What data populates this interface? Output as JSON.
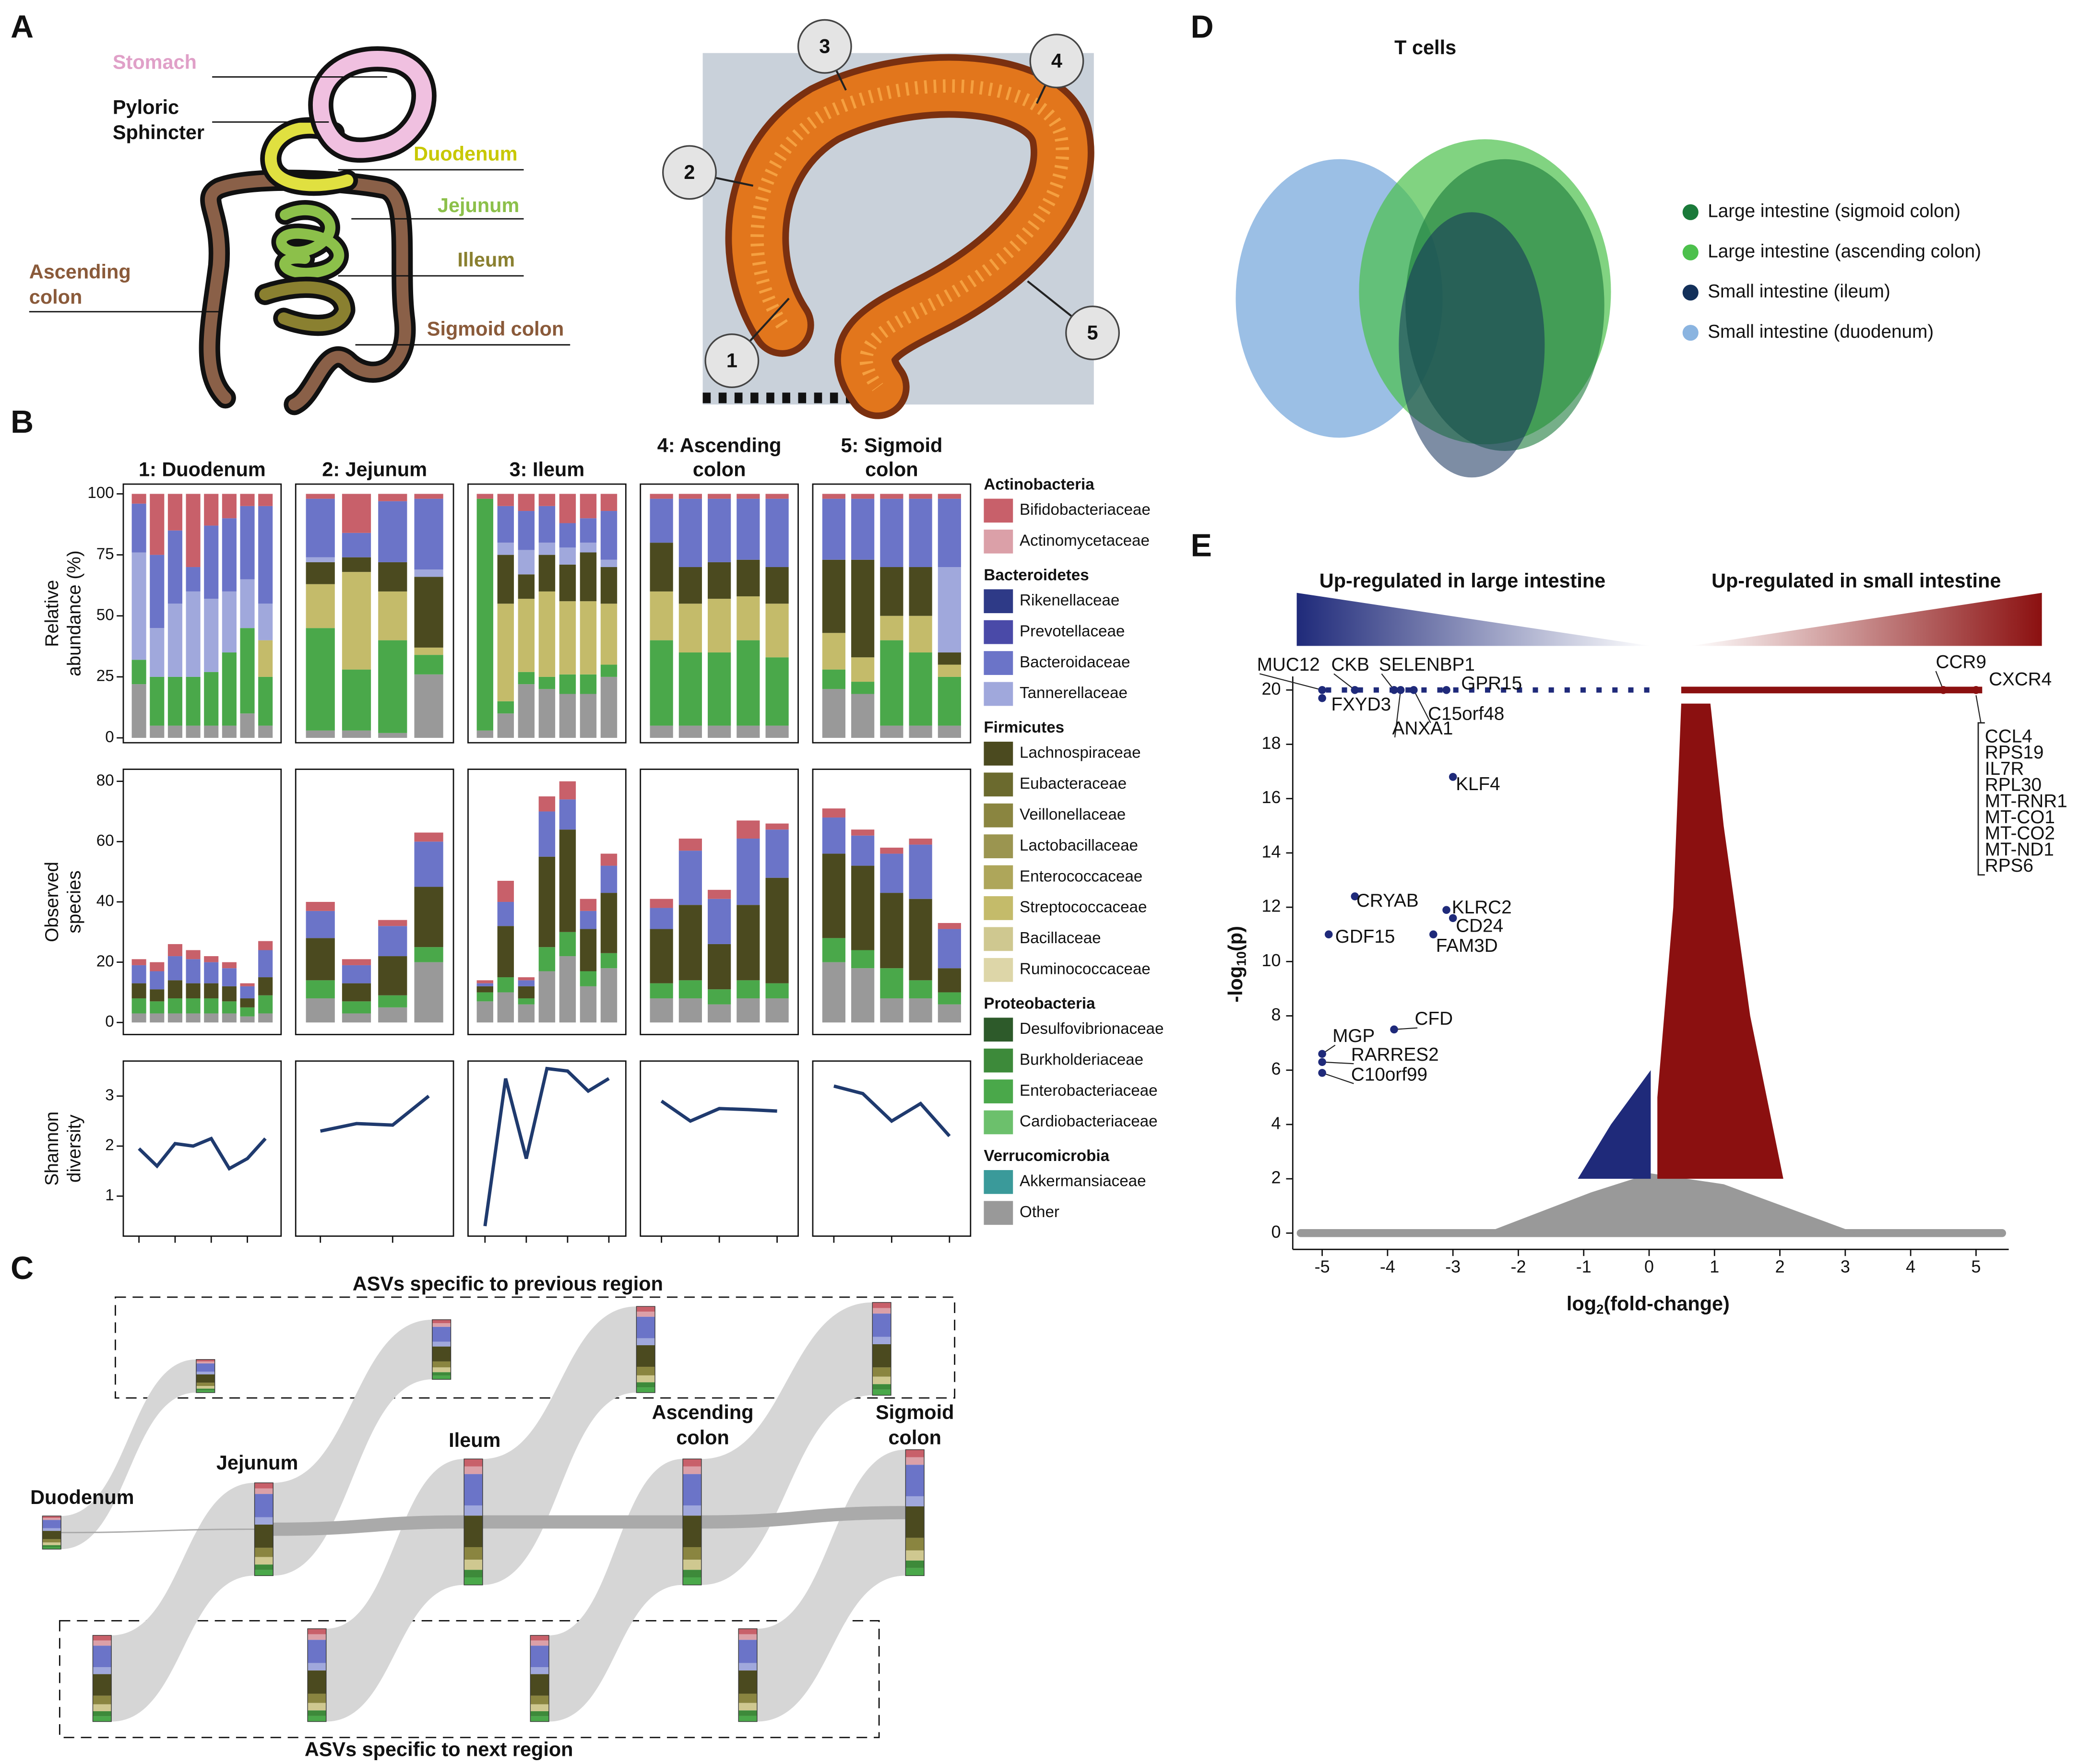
{
  "panel_labels": [
    "A",
    "B",
    "C",
    "D",
    "E"
  ],
  "anatomy": {
    "stomach": "Stomach",
    "pyloric": [
      "Pyloric",
      "Sphincter"
    ],
    "duodenum": "Duodenum",
    "jejunum": "Jejunum",
    "ileum": "Illeum",
    "ascending": [
      "Ascending",
      "colon"
    ],
    "sigmoid": "Sigmoid colon"
  },
  "photo_markers": [
    "1",
    "2",
    "3",
    "4",
    "5"
  ],
  "flow": {
    "top_label": "ASVs specific to previous region",
    "bottom_label": "ASVs specific to next region",
    "regions": [
      [
        "Duodenum"
      ],
      [
        "Jejunum"
      ],
      [
        "Ileum"
      ],
      [
        "Ascending",
        "colon"
      ],
      [
        "Sigmoid",
        "colon"
      ]
    ]
  },
  "legend_b": [
    {
      "group": "Actinobacteria",
      "items": [
        {
          "name": "Bifidobacteriaceae",
          "color": "#c8606a"
        },
        {
          "name": "Actinomycetaceae",
          "color": "#dba0a8"
        }
      ]
    },
    {
      "group": "Bacteroidetes",
      "items": [
        {
          "name": "Rikenellaceae",
          "color": "#2e3a87"
        },
        {
          "name": "Prevotellaceae",
          "color": "#4a4aa8"
        },
        {
          "name": "Bacteroidaceae",
          "color": "#6b74c8"
        },
        {
          "name": "Tannerellaceae",
          "color": "#a0a8dc"
        }
      ]
    },
    {
      "group": "Firmicutes",
      "items": [
        {
          "name": "Lachnospiraceae",
          "color": "#4b4a1f"
        },
        {
          "name": "Eubacteraceae",
          "color": "#6b6a2e"
        },
        {
          "name": "Veillonellaceae",
          "color": "#8a8540"
        },
        {
          "name": "Lactobacillaceae",
          "color": "#9b9550"
        },
        {
          "name": "Enterococcaceae",
          "color": "#aea65a"
        },
        {
          "name": "Streptococcaceae",
          "color": "#c4bb6a"
        },
        {
          "name": "Bacillaceae",
          "color": "#cfc890"
        },
        {
          "name": "Ruminococcaceae",
          "color": "#ddd6a8"
        }
      ]
    },
    {
      "group": "Proteobacteria",
      "items": [
        {
          "name": "Desulfovibrionaceae",
          "color": "#2d5a2a"
        },
        {
          "name": "Burkholderiaceae",
          "color": "#3d8a3a"
        },
        {
          "name": "Enterobacteriaceae",
          "color": "#4aa84a"
        },
        {
          "name": "Cardiobacteriaceae",
          "color": "#6cc06c"
        }
      ]
    },
    {
      "group": "Verrucomicrobia",
      "items": [
        {
          "name": "Akkermansiaceae",
          "color": "#3a9a9a"
        },
        {
          "name": "Other",
          "color": "#999999"
        }
      ]
    }
  ],
  "chart_data": [
    {
      "type": "stacked-bar",
      "facets": [
        [
          "1: Duodenum"
        ],
        [
          "2: Jejunum"
        ],
        [
          "3: Ileum"
        ],
        [
          "4: Ascending",
          "colon"
        ],
        [
          "5: Sigmoid",
          "colon"
        ]
      ],
      "ylabel": [
        "Relative",
        "abundance (%)"
      ],
      "ylim": [
        -2,
        104
      ],
      "yticks": [
        0,
        25,
        50,
        75,
        100
      ],
      "series": [
        {
          "name": "Other",
          "color": "#999999",
          "values": [
            [
              22,
              5,
              5,
              5,
              5,
              5,
              10,
              5
            ],
            [
              3,
              3,
              2,
              26
            ],
            [
              3,
              10,
              22,
              20,
              18,
              18,
              25
            ],
            [
              5,
              5,
              5,
              5,
              5
            ],
            [
              20,
              18,
              5,
              5,
              5
            ]
          ]
        },
        {
          "name": "Enterobacteriaceae",
          "color": "#4aa84a",
          "values": [
            [
              10,
              20,
              20,
              20,
              22,
              30,
              35,
              20
            ],
            [
              42,
              25,
              38,
              8
            ],
            [
              95,
              5,
              5,
              5,
              8,
              8,
              5
            ],
            [
              35,
              30,
              30,
              35,
              28
            ],
            [
              8,
              5,
              35,
              30,
              20
            ]
          ]
        },
        {
          "name": "Streptococcaceae",
          "color": "#c4bb6a",
          "values": [
            [
              0,
              0,
              0,
              0,
              0,
              0,
              0,
              15
            ],
            [
              18,
              40,
              20,
              3
            ],
            [
              0,
              40,
              30,
              35,
              30,
              30,
              25
            ],
            [
              20,
              20,
              22,
              18,
              22
            ],
            [
              15,
              10,
              10,
              15,
              5
            ]
          ]
        },
        {
          "name": "Lachnospiraceae",
          "color": "#4b4a1f",
          "values": [
            [
              0,
              0,
              0,
              0,
              0,
              0,
              0,
              0
            ],
            [
              9,
              6,
              12,
              29
            ],
            [
              0,
              20,
              10,
              15,
              15,
              20,
              15
            ],
            [
              20,
              15,
              15,
              15,
              15
            ],
            [
              30,
              40,
              20,
              20,
              5
            ]
          ]
        },
        {
          "name": "Tannerellaceae",
          "color": "#a0a8dc",
          "values": [
            [
              44,
              20,
              30,
              35,
              30,
              25,
              20,
              15
            ],
            [
              2,
              0,
              0,
              3
            ],
            [
              0,
              5,
              10,
              5,
              7,
              4,
              3
            ],
            [
              0,
              0,
              0,
              0,
              0
            ],
            [
              0,
              0,
              0,
              0,
              35
            ]
          ]
        },
        {
          "name": "Bacteroidaceae",
          "color": "#6b74c8",
          "values": [
            [
              20,
              30,
              30,
              10,
              30,
              30,
              30,
              40
            ],
            [
              24,
              10,
              25,
              29
            ],
            [
              0,
              15,
              16,
              15,
              10,
              10,
              20
            ],
            [
              18,
              28,
              26,
              25,
              28
            ],
            [
              25,
              25,
              28,
              28,
              28
            ]
          ]
        },
        {
          "name": "Bifidobacteriaceae",
          "color": "#c8606a",
          "values": [
            [
              4,
              25,
              15,
              30,
              13,
              10,
              5,
              5
            ],
            [
              2,
              16,
              3,
              2
            ],
            [
              2,
              5,
              7,
              5,
              12,
              10,
              7
            ],
            [
              2,
              2,
              2,
              2,
              2
            ],
            [
              2,
              2,
              2,
              2,
              2
            ]
          ]
        }
      ]
    },
    {
      "type": "stacked-bar",
      "ylabel": [
        "Observed",
        "species"
      ],
      "ylim": [
        -4,
        84
      ],
      "yticks": [
        0,
        20,
        40,
        60,
        80
      ],
      "series": [
        {
          "name": "Other",
          "color": "#999999",
          "values": [
            [
              3,
              3,
              3,
              3,
              3,
              3,
              2,
              3
            ],
            [
              8,
              3,
              5,
              20
            ],
            [
              7,
              10,
              6,
              17,
              22,
              12,
              18
            ],
            [
              8,
              8,
              6,
              8,
              8
            ],
            [
              20,
              18,
              8,
              8,
              6
            ]
          ]
        },
        {
          "name": "Enterobacteriaceae",
          "color": "#4aa84a",
          "values": [
            [
              5,
              4,
              5,
              5,
              5,
              4,
              3,
              6
            ],
            [
              6,
              4,
              4,
              5
            ],
            [
              3,
              5,
              2,
              8,
              8,
              5,
              5
            ],
            [
              5,
              6,
              5,
              6,
              5
            ],
            [
              8,
              6,
              10,
              6,
              4
            ]
          ]
        },
        {
          "name": "Lachnospiraceae",
          "color": "#4b4a1f",
          "values": [
            [
              5,
              4,
              6,
              5,
              5,
              5,
              3,
              6
            ],
            [
              14,
              6,
              13,
              20
            ],
            [
              2,
              17,
              4,
              30,
              34,
              14,
              20
            ],
            [
              18,
              25,
              15,
              25,
              35
            ],
            [
              28,
              28,
              25,
              27,
              8
            ]
          ]
        },
        {
          "name": "Bacteroidaceae",
          "color": "#6b74c8",
          "values": [
            [
              6,
              6,
              8,
              8,
              7,
              6,
              4,
              9
            ],
            [
              9,
              6,
              10,
              15
            ],
            [
              1,
              8,
              2,
              15,
              10,
              6,
              9
            ],
            [
              7,
              18,
              15,
              22,
              16
            ],
            [
              12,
              10,
              13,
              18,
              13
            ]
          ]
        },
        {
          "name": "Bifidobacteriaceae",
          "color": "#c8606a",
          "values": [
            [
              2,
              3,
              4,
              3,
              2,
              2,
              1,
              3
            ],
            [
              3,
              2,
              2,
              3
            ],
            [
              1,
              7,
              1,
              5,
              6,
              4,
              4
            ],
            [
              3,
              4,
              3,
              6,
              2
            ],
            [
              3,
              2,
              2,
              2,
              2
            ]
          ]
        }
      ]
    },
    {
      "type": "line",
      "ylabel": [
        "Shannon",
        "diversity"
      ],
      "ylim": [
        0.2,
        3.7
      ],
      "yticks": [
        1,
        2,
        3
      ],
      "color": "#1f3a6e",
      "values": [
        [
          1.95,
          1.6,
          2.05,
          2.0,
          2.15,
          1.55,
          1.75,
          2.15
        ],
        [
          2.3,
          2.45,
          2.42,
          3.0
        ],
        [
          0.4,
          3.35,
          1.75,
          3.55,
          3.5,
          3.1,
          3.35
        ],
        [
          2.9,
          2.5,
          2.75,
          2.73,
          2.7
        ],
        [
          3.2,
          3.05,
          2.5,
          2.85,
          2.2
        ]
      ]
    },
    {
      "type": "scatter",
      "title": "T cells",
      "series": [
        {
          "name": "Large intestine (sigmoid colon)",
          "color": "#1a7a3a"
        },
        {
          "name": "Large intestine (ascending colon)",
          "color": "#4cc04c"
        },
        {
          "name": "Small intestine (ileum)",
          "color": "#13305a"
        },
        {
          "name": "Small intestine (duodenum)",
          "color": "#8ab4e0"
        }
      ]
    },
    {
      "type": "scatter",
      "title_left": "Up-regulated in large intestine",
      "title_right": "Up-regulated in small intestine",
      "xlabel": {
        "base": "log",
        "sub": "2",
        "rest": "(fold-change)"
      },
      "ylabel": {
        "base": "-log",
        "sub": "10",
        "rest": "(p)"
      },
      "xlim": [
        -5.45,
        5.5
      ],
      "xticks": [
        -5,
        -4,
        -3,
        -2,
        -1,
        0,
        1,
        2,
        3,
        4,
        5
      ],
      "ylim": [
        -0.6,
        20.5
      ],
      "yticks": [
        0,
        2,
        4,
        6,
        8,
        10,
        12,
        14,
        16,
        18,
        20
      ],
      "colors": {
        "down": "#1f2a7a",
        "up": "#8b1010",
        "ns": "#999999"
      },
      "genes": [
        {
          "label": "MUC12",
          "x": -5,
          "y": 20
        },
        {
          "label": "CKB",
          "x": -4.5,
          "y": 20
        },
        {
          "label": "SELENBP1",
          "x": -3.9,
          "y": 20
        },
        {
          "label": "GPR15",
          "x": -3.1,
          "y": 20
        },
        {
          "label": "FXYD3",
          "x": -5,
          "y": 19.7
        },
        {
          "label": "C15orf48",
          "x": -3.6,
          "y": 20
        },
        {
          "label": "ANXA1",
          "x": -3.8,
          "y": 20
        },
        {
          "label": "KLF4",
          "x": -3.0,
          "y": 16.8
        },
        {
          "label": "CRYAB",
          "x": -4.5,
          "y": 12.4
        },
        {
          "label": "KLRC2",
          "x": -3.1,
          "y": 11.9
        },
        {
          "label": "CD24",
          "x": -3.0,
          "y": 11.6
        },
        {
          "label": "FAM3D",
          "x": -3.3,
          "y": 11.0
        },
        {
          "label": "GDF15",
          "x": -4.9,
          "y": 11.0
        },
        {
          "label": "CFD",
          "x": -3.9,
          "y": 7.5
        },
        {
          "label": "MGP",
          "x": -5.0,
          "y": 6.6
        },
        {
          "label": "RARRES2",
          "x": -5.0,
          "y": 6.3
        },
        {
          "label": "C10orf99",
          "x": -5.0,
          "y": 5.9
        },
        {
          "label": "CCR9",
          "x": 4.5,
          "y": 20
        },
        {
          "label": "CXCR4",
          "x": 5,
          "y": 20
        }
      ],
      "gene_list": [
        "CCL4",
        "RPS19",
        "IL7R",
        "RPL30",
        "MT-RNR1",
        "MT-CO1",
        "MT-CO2",
        "MT-ND1",
        "RPS6"
      ]
    }
  ]
}
